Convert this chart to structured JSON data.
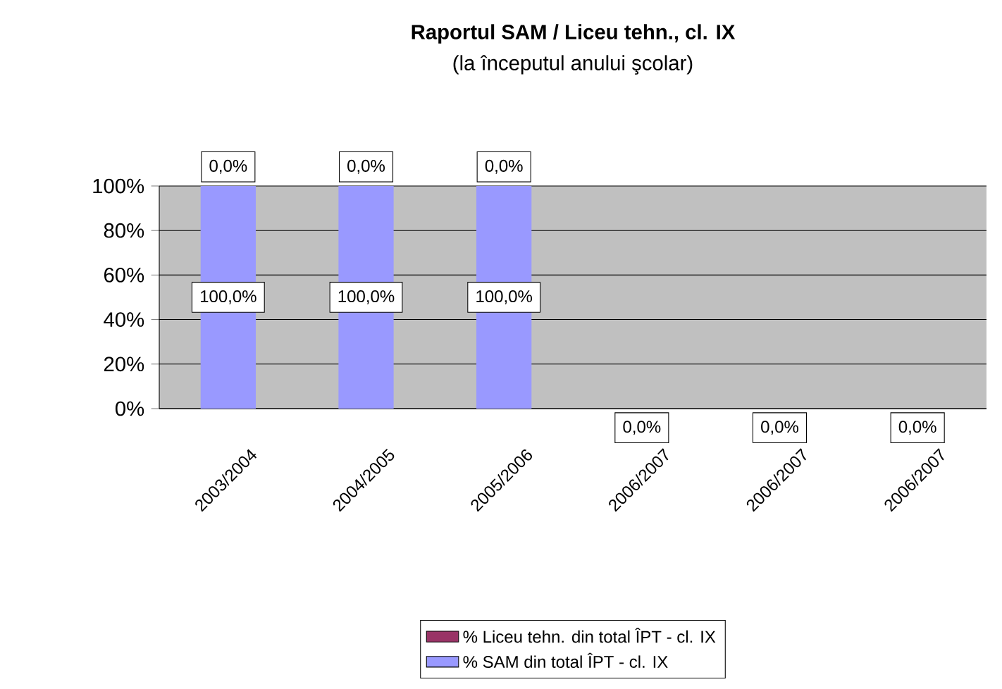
{
  "chart_data": {
    "type": "bar",
    "stacked": true,
    "title": "Raportul SAM / Liceu tehn., cl. IX",
    "subtitle": "(la începutul anului şcolar)",
    "categories": [
      "2003/2004",
      "2004/2005",
      "2005/2006",
      "2006/2007",
      "2006/2007",
      "2006/2007"
    ],
    "series": [
      {
        "name": "% SAM din total ÎPT - cl. IX",
        "color": "#9999ff",
        "values": [
          100,
          100,
          100,
          0,
          0,
          0
        ],
        "value_labels": [
          "100,0%",
          "100,0%",
          "100,0%",
          "0,0%",
          "0,0%",
          "0,0%"
        ]
      },
      {
        "name": "% Liceu tehn. din total ÎPT - cl. IX",
        "color": "#993366",
        "values": [
          0,
          0,
          0,
          0,
          0,
          0
        ],
        "value_labels": [
          "0,0%",
          "0,0%",
          "0,0%",
          null,
          null,
          null
        ]
      }
    ],
    "ylim": [
      0,
      100
    ],
    "yticks": [
      {
        "value": 0,
        "label": "0%"
      },
      {
        "value": 20,
        "label": "20%"
      },
      {
        "value": 40,
        "label": "40%"
      },
      {
        "value": 60,
        "label": "60%"
      },
      {
        "value": 80,
        "label": "80%"
      },
      {
        "value": 100,
        "label": "100%"
      }
    ],
    "grid": "y",
    "legend": "bottom"
  }
}
